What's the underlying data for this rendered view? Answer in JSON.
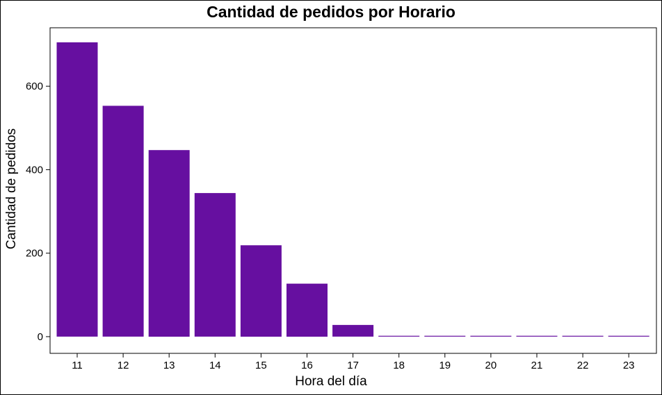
{
  "chart_data": {
    "type": "bar",
    "title": "Cantidad de pedidos por Horario",
    "xlabel": "Hora del día",
    "ylabel": "Cantidad de pedidos",
    "categories": [
      "11",
      "12",
      "13",
      "14",
      "15",
      "16",
      "17",
      "18",
      "19",
      "20",
      "21",
      "22",
      "23"
    ],
    "values": [
      705,
      553,
      447,
      344,
      219,
      127,
      28,
      1,
      1,
      1,
      1,
      1,
      1
    ],
    "ylim": [
      -40,
      740
    ],
    "yticks": [
      0,
      200,
      400,
      600
    ],
    "bar_color": "#660fa0",
    "grid": false,
    "legend": "none"
  }
}
